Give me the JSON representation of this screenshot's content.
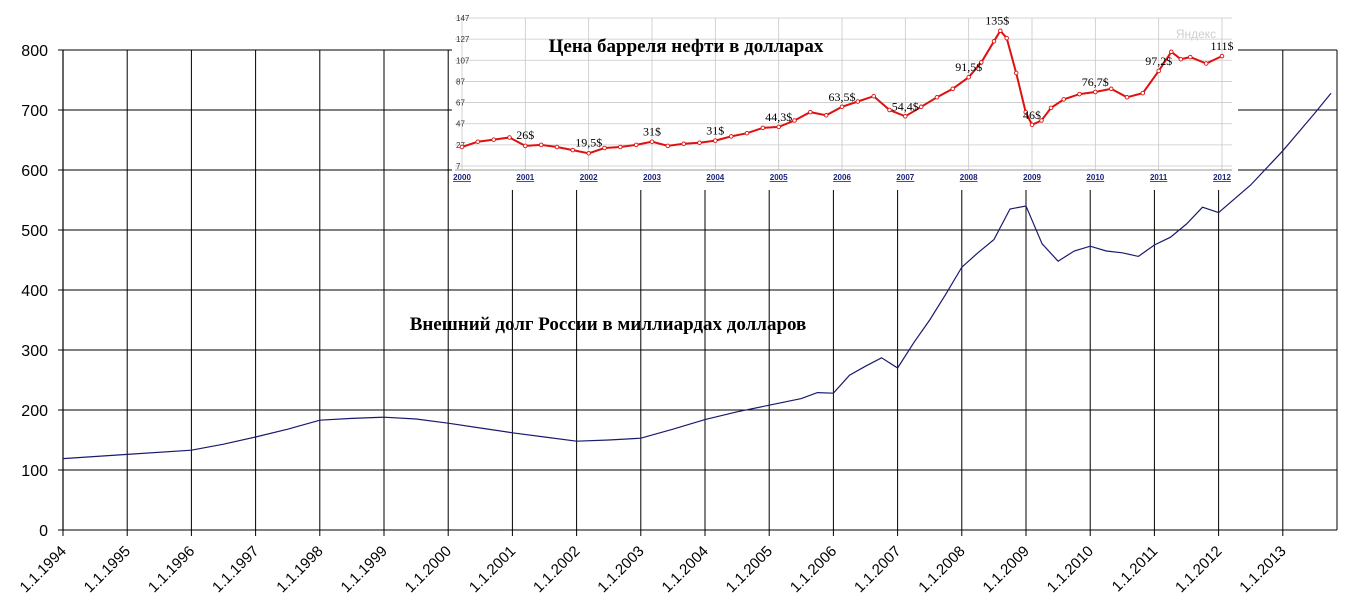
{
  "chart_data": [
    {
      "type": "line",
      "title": "Внешний долг России в миллиардах долларов",
      "ylim": [
        0,
        800
      ],
      "yticks": [
        "0",
        "100",
        "200",
        "300",
        "400",
        "500",
        "600",
        "700",
        "800"
      ],
      "xticks": [
        "1.1.1994",
        "1.1.1995",
        "1.1.1996",
        "1.1.1997",
        "1.1.1998",
        "1.1.1999",
        "1.1.2000",
        "1.1.2001",
        "1.1.2002",
        "1.1.2003",
        "1.1.2004",
        "1.1.2005",
        "1.1.2006",
        "1.1.2007",
        "1.1.2008",
        "1.1.2009",
        "1.1.2010",
        "1.1.2011",
        "1.1.2012",
        "1.1.2013"
      ],
      "grid": true,
      "line_color": "#1a1a6e",
      "series": [
        {
          "x": [
            1994.0,
            1995.0,
            1996.0,
            1996.5,
            1997.0,
            1997.5,
            1998.0,
            1998.5,
            1999.0,
            1999.5,
            2000.0,
            2000.5,
            2001.0,
            2001.5,
            2002.0,
            2002.5,
            2003.0,
            2003.5,
            2004.0,
            2004.5,
            2005.0,
            2005.5,
            2005.75,
            2006.0,
            2006.25,
            2006.5,
            2006.75,
            2007.0,
            2007.25,
            2007.5,
            2007.75,
            2008.0,
            2008.25,
            2008.5,
            2008.75,
            2009.0,
            2009.25,
            2009.5,
            2009.75,
            2010.0,
            2010.25,
            2010.5,
            2010.75,
            2011.0,
            2011.25,
            2011.5,
            2011.75,
            2012.0,
            2012.5,
            2013.0,
            2013.5,
            2013.75
          ],
          "values": [
            119,
            126,
            133,
            143,
            155,
            168,
            183,
            186,
            188,
            185,
            178,
            170,
            162,
            155,
            148,
            150,
            153,
            168,
            184,
            197,
            208,
            219,
            229,
            228,
            258,
            273,
            287,
            270,
            312,
            350,
            393,
            438,
            462,
            484,
            535,
            540,
            477,
            448,
            465,
            473,
            465,
            462,
            456,
            475,
            488,
            510,
            538,
            529,
            575,
            632,
            695,
            728
          ]
        }
      ]
    },
    {
      "type": "line",
      "title": "Цена барреля нефти в долларах",
      "ylim": [
        7,
        147
      ],
      "yticks": [
        "147",
        "127",
        "107",
        "87",
        "67",
        "47",
        "27",
        "7"
      ],
      "xticks": [
        "2000",
        "2001",
        "2002",
        "2003",
        "2004",
        "2005",
        "2006",
        "2007",
        "2008",
        "2009",
        "2010",
        "2011",
        "2012"
      ],
      "watermark": "Яндекс",
      "line_color": "#e01010",
      "labels": [
        {
          "text": "26$",
          "x": 2001.0,
          "y": 27
        },
        {
          "text": "19,5$",
          "x": 2002.0,
          "y": 20
        },
        {
          "text": "31$",
          "x": 2003.0,
          "y": 30
        },
        {
          "text": "31$",
          "x": 2004.0,
          "y": 31
        },
        {
          "text": "44,3$",
          "x": 2005.0,
          "y": 44
        },
        {
          "text": "63,5$",
          "x": 2006.0,
          "y": 63
        },
        {
          "text": "54,4$",
          "x": 2007.0,
          "y": 54
        },
        {
          "text": "91,5$",
          "x": 2008.0,
          "y": 91
        },
        {
          "text": "135$",
          "x": 2008.45,
          "y": 135
        },
        {
          "text": "46$",
          "x": 2009.0,
          "y": 46
        },
        {
          "text": "76,7$",
          "x": 2010.0,
          "y": 77
        },
        {
          "text": "97,2$",
          "x": 2011.0,
          "y": 97
        },
        {
          "text": "111$",
          "x": 2012.0,
          "y": 111
        }
      ],
      "series": [
        {
          "x": [
            2000.0,
            2000.25,
            2000.5,
            2000.75,
            2001.0,
            2001.25,
            2001.5,
            2001.75,
            2002.0,
            2002.25,
            2002.5,
            2002.75,
            2003.0,
            2003.25,
            2003.5,
            2003.75,
            2004.0,
            2004.25,
            2004.5,
            2004.75,
            2005.0,
            2005.25,
            2005.5,
            2005.75,
            2006.0,
            2006.25,
            2006.5,
            2006.75,
            2007.0,
            2007.25,
            2007.5,
            2007.75,
            2008.0,
            2008.2,
            2008.4,
            2008.5,
            2008.6,
            2008.75,
            2008.9,
            2009.0,
            2009.15,
            2009.3,
            2009.5,
            2009.75,
            2010.0,
            2010.25,
            2010.5,
            2010.75,
            2011.0,
            2011.2,
            2011.35,
            2011.5,
            2011.75,
            2012.0
          ],
          "values": [
            25,
            30,
            32,
            34,
            26,
            27,
            25,
            22,
            19,
            24,
            25,
            27,
            30,
            26,
            28,
            29,
            31,
            35,
            38,
            43,
            44,
            50,
            58,
            55,
            63,
            68,
            73,
            60,
            54,
            63,
            72,
            80,
            91,
            105,
            125,
            135,
            128,
            95,
            58,
            46,
            50,
            62,
            70,
            75,
            77,
            80,
            72,
            76,
            97,
            115,
            108,
            110,
            104,
            111
          ]
        }
      ]
    }
  ]
}
